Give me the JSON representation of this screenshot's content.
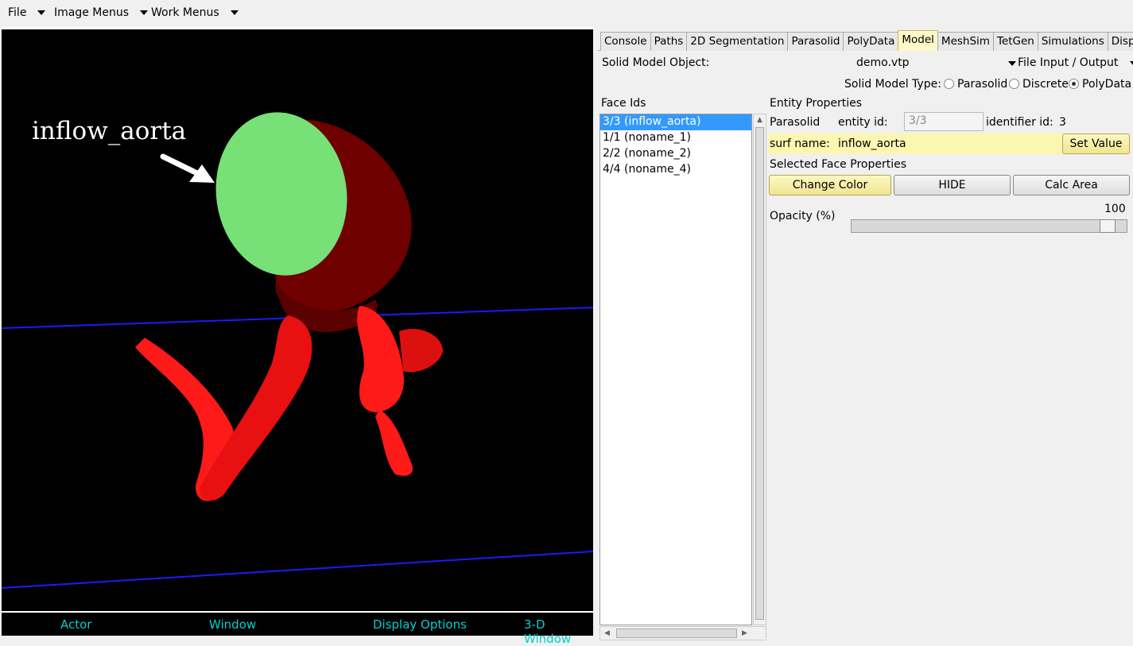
{
  "menubar": {
    "file": "File",
    "image_menus": "Image Menus",
    "work_menus": "Work Menus"
  },
  "viewport": {
    "annotation": "inflow_aorta",
    "bottom": {
      "actor": "Actor",
      "window": "Window",
      "display_options": "Display Options",
      "window_3d": "3-D Window"
    }
  },
  "tabs": [
    "Console",
    "Paths",
    "2D Segmentation",
    "Parasolid",
    "PolyData",
    "Model",
    "MeshSim",
    "TetGen",
    "Simulations",
    "Displays"
  ],
  "active_tab": "Model",
  "model": {
    "solid_model_object_label": "Solid Model Object:",
    "solid_model_object_value": "demo.vtp",
    "file_io_label": "File Input / Output",
    "solid_model_type_label": "Solid Model Type:",
    "type_options": [
      "Parasolid",
      "Discrete",
      "PolyData"
    ],
    "selected_type": "PolyData",
    "face_ids_label": "Face Ids",
    "face_ids": [
      "3/3 (inflow_aorta)",
      "1/1 (noname_1)",
      "2/2 (noname_2)",
      "4/4 (noname_4)"
    ],
    "entity_properties_label": "Entity Properties",
    "parasolid_label": "Parasolid",
    "entity_id_label": "entity id:",
    "entity_id_value": "3/3",
    "identifier_id_label": "identifier id:",
    "identifier_id_value": "3",
    "surf_name_label": "surf name:",
    "surf_name_value": "inflow_aorta",
    "set_value_button": "Set Value",
    "selected_face_label": "Selected Face Properties",
    "change_color_button": "Change Color",
    "hide_button": "HIDE",
    "calc_area_button": "Calc Area",
    "opacity_label": "Opacity (%)",
    "opacity_value": "100"
  },
  "colors": {
    "viewport_bg": "#000000",
    "cap_green": "#77e077",
    "vessel_red": "#ff1a1a",
    "dark_red": "#6e0000",
    "plane_line": "#1a1aff",
    "bottom_text": "#00d0d0",
    "selection": "#3399ff",
    "highlight_yellow": "#fbf6b0"
  }
}
